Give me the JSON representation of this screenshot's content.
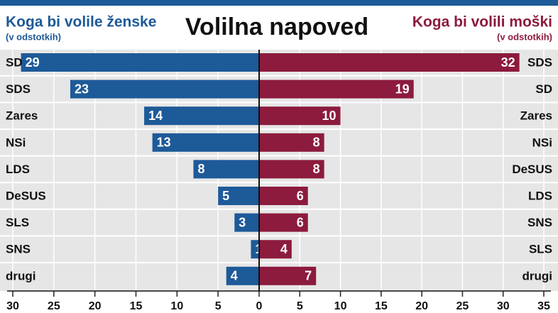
{
  "title": "Volilna napoved",
  "chart_data": [
    {
      "type": "bar",
      "orientation": "horizontal",
      "reversed": true,
      "title": "Koga bi volile ženske",
      "subtitle": "(v odstotkih)",
      "categories": [
        "SD",
        "SDS",
        "Zares",
        "NSi",
        "LDS",
        "DeSUS",
        "SLS",
        "SNS",
        "drugi"
      ],
      "values": [
        29,
        23,
        14,
        13,
        8,
        5,
        3,
        1,
        4
      ],
      "color": "#1d5a98",
      "xlim": [
        0,
        30
      ],
      "xticks": [
        0,
        5,
        10,
        15,
        20,
        25,
        30
      ],
      "grid": true
    },
    {
      "type": "bar",
      "orientation": "horizontal",
      "reversed": false,
      "title": "Koga bi volili moški",
      "subtitle": "(v odstotkih)",
      "categories": [
        "SDS",
        "SD",
        "Zares",
        "NSi",
        "DeSUS",
        "LDS",
        "SNS",
        "SLS",
        "drugi"
      ],
      "values": [
        32,
        19,
        10,
        8,
        8,
        6,
        6,
        4,
        7
      ],
      "color": "#8c1b3d",
      "xlim": [
        0,
        35
      ],
      "xticks": [
        5,
        10,
        15,
        20,
        25,
        30,
        35
      ],
      "grid": true
    }
  ]
}
